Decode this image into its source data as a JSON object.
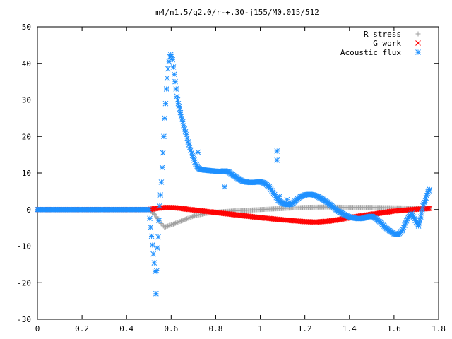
{
  "chart_data": {
    "type": "scatter",
    "title": "m4/n1.5/q2.0/r-+.30-j155/M0.015/512",
    "xlabel": "",
    "ylabel": "",
    "xlim": [
      0,
      1.8
    ],
    "ylim": [
      -30,
      50
    ],
    "x_ticks": [
      0,
      0.2,
      0.4,
      0.6,
      0.8,
      1,
      1.2,
      1.4,
      1.6,
      1.8
    ],
    "x_tick_labels": [
      "0",
      "0.2",
      "0.4",
      "0.6",
      "0.8",
      "1",
      "1.2",
      "1.4",
      "1.6",
      "1.8"
    ],
    "y_ticks": [
      -30,
      -20,
      -10,
      0,
      10,
      20,
      30,
      40,
      50
    ],
    "y_tick_labels": [
      "-30",
      "-20",
      "-10",
      "0",
      "10",
      "20",
      "30",
      "40",
      "50"
    ],
    "grid": false,
    "legend_position": "top-right",
    "series": [
      {
        "name": "R stress",
        "marker": "plus",
        "color": "#a0a0a0",
        "points": [
          [
            0,
            0
          ],
          [
            0.5,
            0
          ],
          [
            0.53,
            -1.5
          ],
          [
            0.55,
            -3.5
          ],
          [
            0.57,
            -4.8
          ],
          [
            0.6,
            -4.2
          ],
          [
            0.65,
            -3.0
          ],
          [
            0.7,
            -1.8
          ],
          [
            0.75,
            -1.1
          ],
          [
            0.8,
            -0.7
          ],
          [
            0.9,
            -0.3
          ],
          [
            1.0,
            0.0
          ],
          [
            1.1,
            0.3
          ],
          [
            1.2,
            0.6
          ],
          [
            1.3,
            0.7
          ],
          [
            1.4,
            0.6
          ],
          [
            1.5,
            0.6
          ],
          [
            1.6,
            0.5
          ],
          [
            1.7,
            0.4
          ],
          [
            1.76,
            0.3
          ]
        ]
      },
      {
        "name": "G work",
        "marker": "cross",
        "color": "#ff0000",
        "points": [
          [
            0,
            0
          ],
          [
            0.5,
            0
          ],
          [
            0.53,
            0.3
          ],
          [
            0.58,
            0.6
          ],
          [
            0.62,
            0.5
          ],
          [
            0.7,
            -0.1
          ],
          [
            0.8,
            -0.8
          ],
          [
            0.9,
            -1.5
          ],
          [
            1.0,
            -2.2
          ],
          [
            1.1,
            -2.8
          ],
          [
            1.2,
            -3.3
          ],
          [
            1.25,
            -3.4
          ],
          [
            1.3,
            -3.2
          ],
          [
            1.35,
            -2.8
          ],
          [
            1.4,
            -2.2
          ],
          [
            1.5,
            -1.3
          ],
          [
            1.6,
            -0.4
          ],
          [
            1.7,
            0.1
          ],
          [
            1.76,
            0.3
          ]
        ]
      },
      {
        "name": "Acoustic flux",
        "marker": "star",
        "color": "#1e90ff",
        "points": [
          [
            0,
            0
          ],
          [
            0.5,
            0
          ],
          [
            0.528,
            -17
          ],
          [
            0.532,
            -23
          ],
          [
            0.538,
            -10.5
          ],
          [
            0.542,
            -7.5
          ],
          [
            0.545,
            -3
          ],
          [
            0.548,
            1
          ],
          [
            0.552,
            4
          ],
          [
            0.556,
            7.5
          ],
          [
            0.56,
            11.5
          ],
          [
            0.563,
            15.5
          ],
          [
            0.567,
            20
          ],
          [
            0.571,
            25
          ],
          [
            0.575,
            29
          ],
          [
            0.579,
            33
          ],
          [
            0.582,
            36
          ],
          [
            0.586,
            38.5
          ],
          [
            0.59,
            40.5
          ],
          [
            0.594,
            41.8
          ],
          [
            0.598,
            42.4
          ],
          [
            0.602,
            42
          ],
          [
            0.606,
            41
          ],
          [
            0.61,
            39
          ],
          [
            0.614,
            37
          ],
          [
            0.618,
            35
          ],
          [
            0.622,
            33
          ],
          [
            0.626,
            31
          ],
          [
            0.632,
            29
          ],
          [
            0.638,
            27.5
          ],
          [
            0.645,
            25.5
          ],
          [
            0.652,
            24
          ],
          [
            0.66,
            22
          ],
          [
            0.668,
            20.5
          ],
          [
            0.676,
            18.5
          ],
          [
            0.684,
            17
          ],
          [
            0.692,
            15.5
          ],
          [
            0.7,
            14
          ],
          [
            0.71,
            12.5
          ],
          [
            0.72,
            11.5
          ],
          [
            0.73,
            11
          ],
          [
            0.75,
            10.8
          ],
          [
            0.78,
            10.6
          ],
          [
            0.8,
            10.5
          ],
          [
            0.82,
            10.4
          ],
          [
            0.84,
            10.6
          ],
          [
            0.86,
            10.2
          ],
          [
            0.88,
            9.3
          ],
          [
            0.9,
            8.5
          ],
          [
            0.92,
            7.8
          ],
          [
            0.94,
            7.5
          ],
          [
            0.96,
            7.4
          ],
          [
            0.98,
            7.5
          ],
          [
            1.0,
            7.6
          ],
          [
            1.02,
            7.2
          ],
          [
            1.04,
            6.2
          ],
          [
            1.06,
            4.5
          ],
          [
            1.08,
            2.5
          ],
          [
            1.1,
            1.8
          ],
          [
            1.12,
            1.3
          ],
          [
            1.14,
            1.5
          ],
          [
            1.16,
            2.5
          ],
          [
            1.18,
            3.5
          ],
          [
            1.2,
            4.0
          ],
          [
            1.22,
            4.2
          ],
          [
            1.24,
            4.0
          ],
          [
            1.26,
            3.5
          ],
          [
            1.28,
            2.8
          ],
          [
            1.3,
            2.0
          ],
          [
            1.32,
            1.0
          ],
          [
            1.34,
            0.0
          ],
          [
            1.36,
            -0.8
          ],
          [
            1.38,
            -1.5
          ],
          [
            1.4,
            -2.0
          ],
          [
            1.42,
            -2.3
          ],
          [
            1.44,
            -2.5
          ],
          [
            1.46,
            -2.4
          ],
          [
            1.48,
            -2.0
          ],
          [
            1.5,
            -1.8
          ],
          [
            1.52,
            -2.5
          ],
          [
            1.54,
            -3.5
          ],
          [
            1.56,
            -4.8
          ],
          [
            1.58,
            -5.8
          ],
          [
            1.6,
            -6.6
          ],
          [
            1.62,
            -6.8
          ],
          [
            1.64,
            -5.5
          ],
          [
            1.66,
            -2.5
          ],
          [
            1.68,
            -1.0
          ],
          [
            1.7,
            -3.5
          ],
          [
            1.71,
            -4.5
          ],
          [
            1.72,
            -2.0
          ],
          [
            1.73,
            1.0
          ],
          [
            1.74,
            2.5
          ],
          [
            1.75,
            4.5
          ],
          [
            1.76,
            5.5
          ],
          [
            0.72,
            15.7
          ],
          [
            0.84,
            6.2
          ],
          [
            1.075,
            16
          ],
          [
            1.075,
            13.5
          ],
          [
            1.085,
            3.5
          ],
          [
            1.12,
            2.7
          ]
        ]
      }
    ]
  }
}
